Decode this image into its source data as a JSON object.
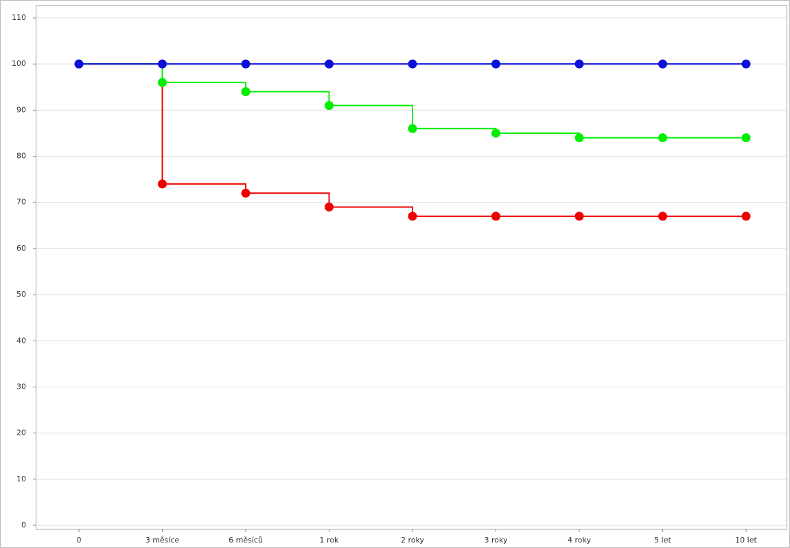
{
  "chart_data": {
    "type": "line",
    "step": "post",
    "categories": [
      "0",
      "3 měsíce",
      "6 měsíců",
      "1 rok",
      "2 roky",
      "3 roky",
      "4 roky",
      "5 let",
      "10 let"
    ],
    "series": [
      {
        "color": "#ee0000",
        "values": [
          100,
          74,
          72,
          69,
          67,
          67,
          67,
          67,
          67
        ]
      },
      {
        "color": "#00ee00",
        "values": [
          100,
          96,
          94,
          91,
          86,
          85,
          84,
          84,
          84
        ]
      },
      {
        "color": "#0a10d8",
        "values": [
          100,
          100,
          100,
          100,
          100,
          100,
          100,
          100,
          100
        ]
      }
    ],
    "ylim": [
      0,
      110
    ],
    "yticks": [
      0,
      10,
      20,
      30,
      40,
      50,
      60,
      70,
      80,
      90,
      100,
      110
    ],
    "grid": true
  }
}
